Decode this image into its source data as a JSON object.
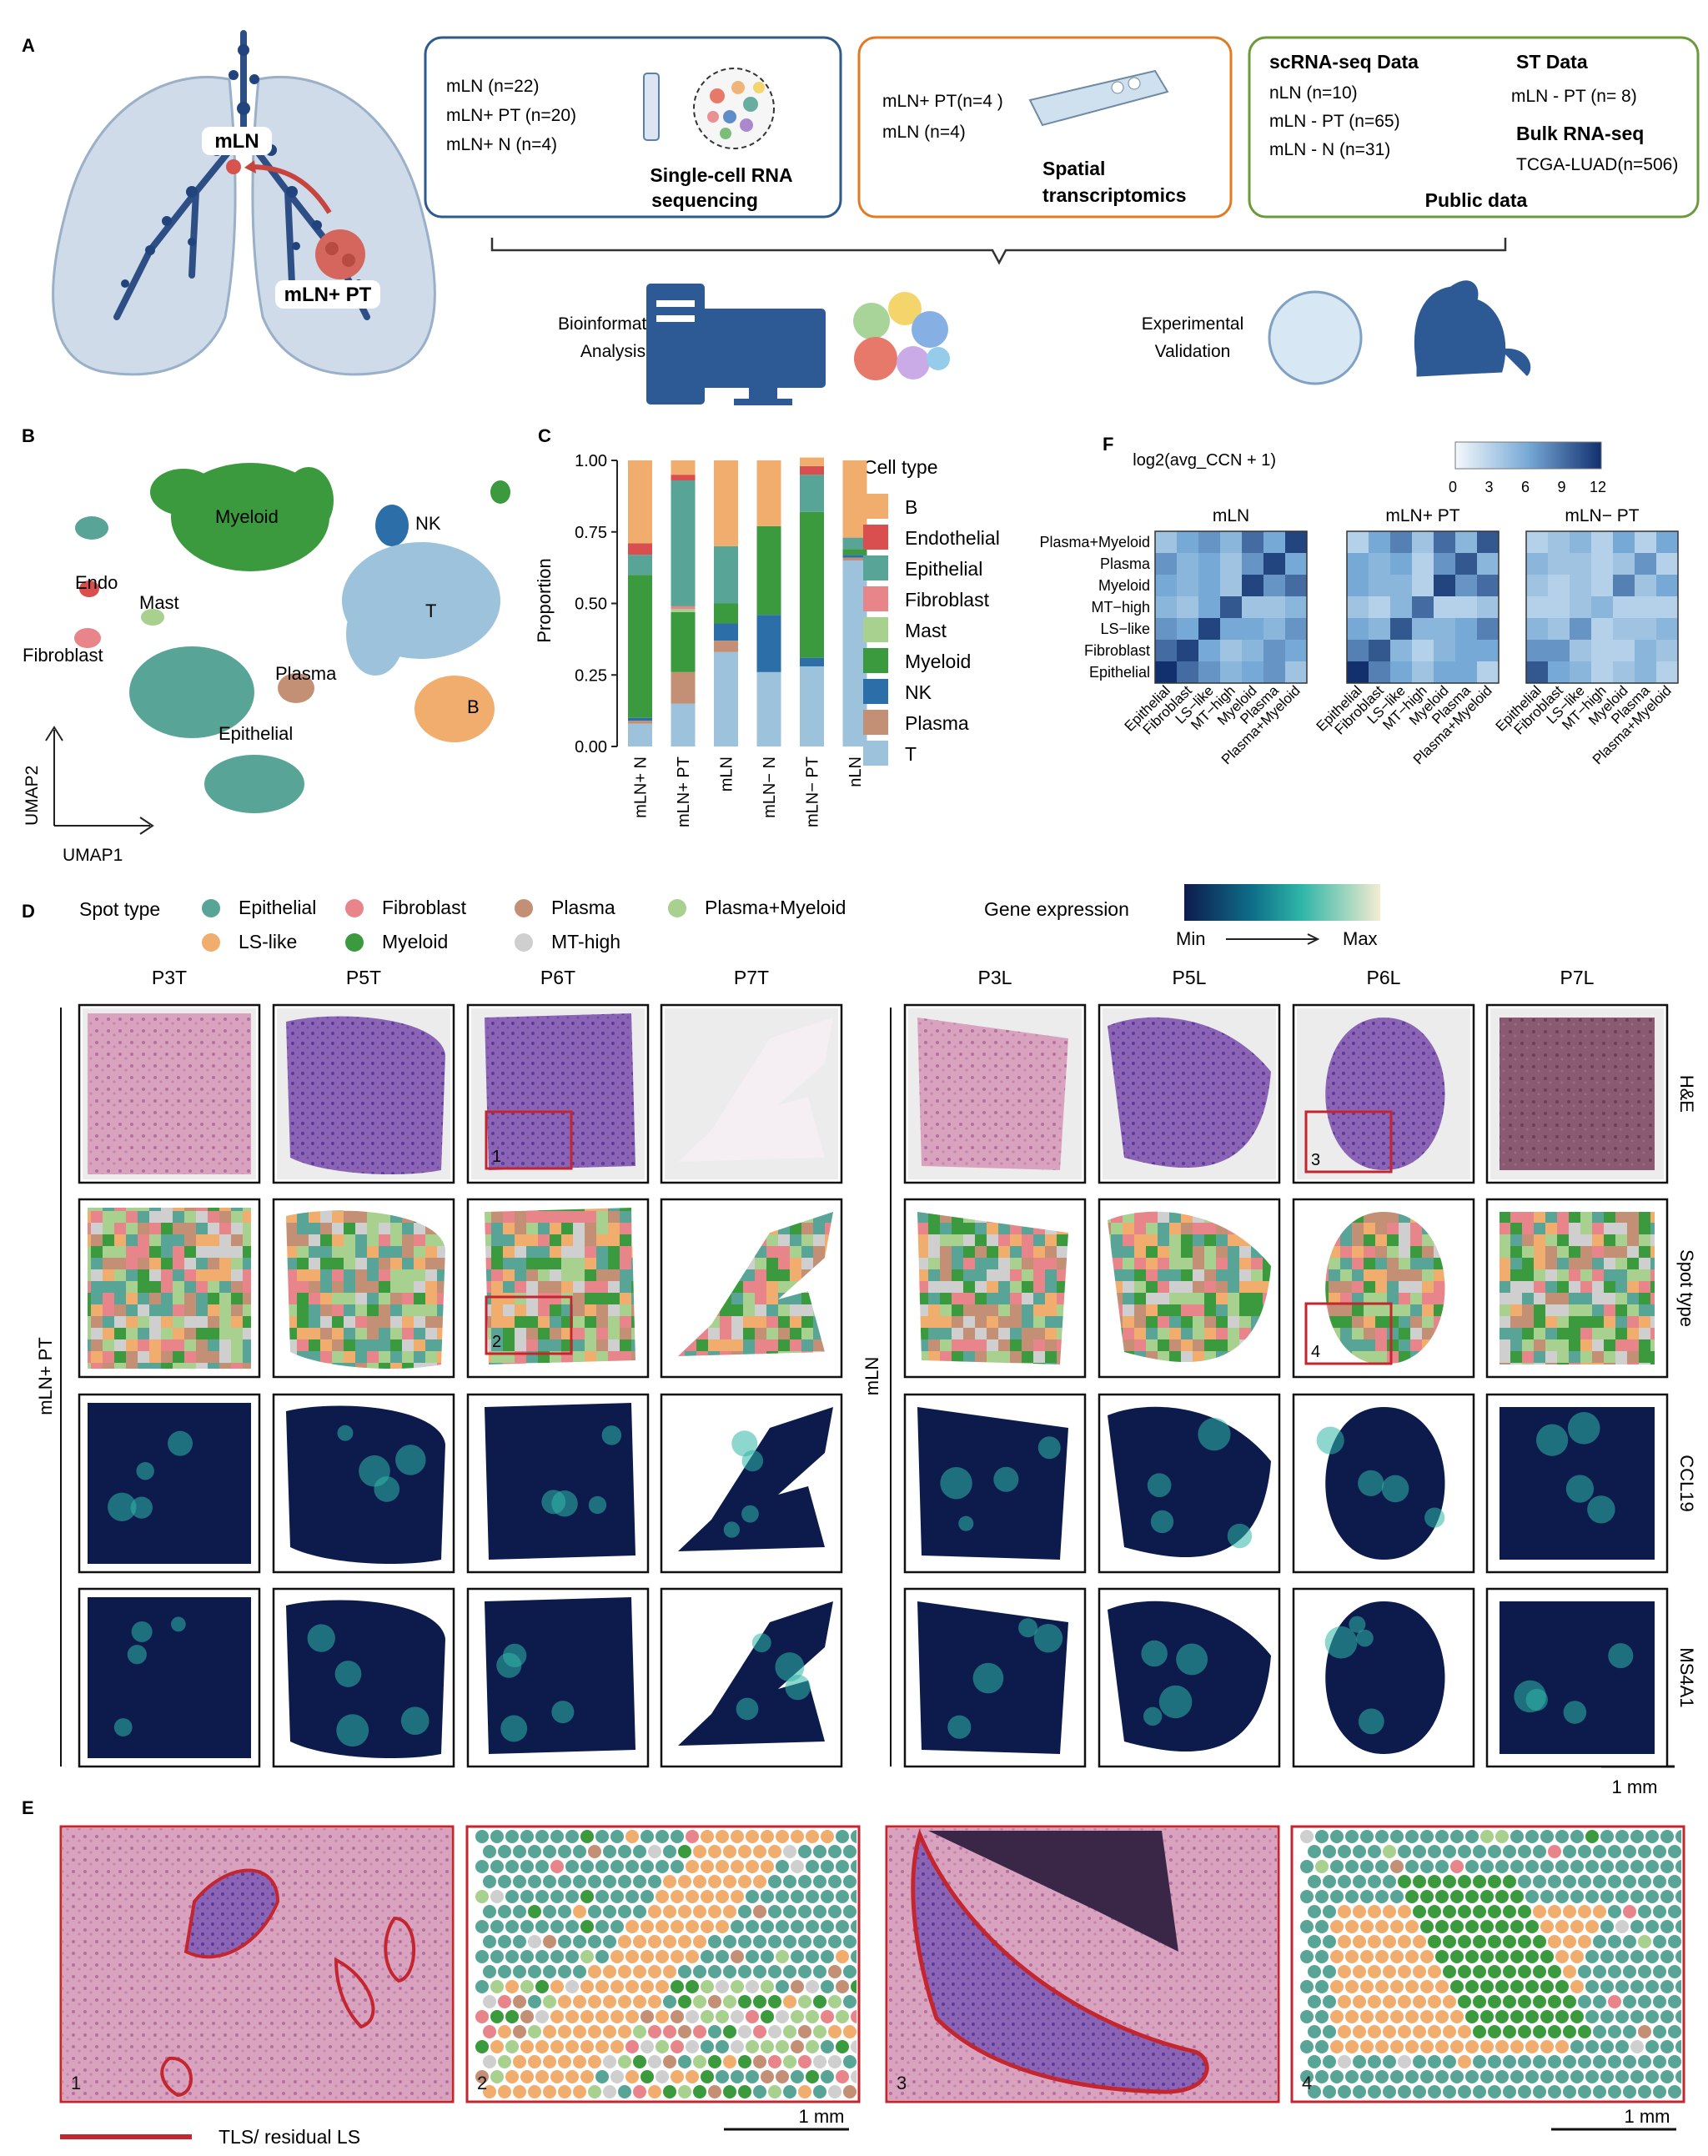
{
  "panel_letters": {
    "a": "A",
    "b": "B",
    "c": "C",
    "d": "D",
    "e": "E",
    "f": "F"
  },
  "panel_a": {
    "lung_labels": {
      "mln": "mLN",
      "mln_pt": "mLN+ PT"
    },
    "box1": {
      "lines": [
        "mLN  (n=22)",
        "mLN+ PT (n=20)",
        "mLN+ N (n=4)"
      ],
      "title": [
        "Single-cell RNA",
        "sequencing"
      ]
    },
    "box2": {
      "lines": [
        "mLN+ PT(n=4 )",
        "mLN  (n=4)"
      ],
      "title": [
        "Spatial",
        "transcriptomics"
      ]
    },
    "box3": {
      "heading1": "scRNA-seq Data",
      "lines1": [
        "nLN  (n=10)",
        "mLN - PT (n=65)",
        "mLN - N (n=31)"
      ],
      "heading2": "ST Data",
      "lines2": [
        "mLN - PT (n= 8)"
      ],
      "heading3": "Bulk RNA-seq",
      "lines3": [
        "TCGA-LUAD(n=506)"
      ],
      "footer": "Public  data"
    },
    "bottom": {
      "bioinf": [
        "Bioinformatics",
        "Analysis"
      ],
      "exp": [
        "Experimental",
        "Validation"
      ]
    },
    "colors": {
      "box1": "#2e5a8c",
      "box2": "#e07b25",
      "box3": "#6b9a3a"
    }
  },
  "panel_b": {
    "axis_x": "UMAP1",
    "axis_y": "UMAP2",
    "labels": [
      "Myeloid",
      "NK",
      "T",
      "Endo",
      "Mast",
      "Fibroblast",
      "Plasma",
      "B",
      "Epithelial"
    ]
  },
  "chart_data": {
    "type": "bar",
    "stacked": true,
    "categories": [
      "mLN+ N",
      "mLN+ PT",
      "mLN",
      "mLN− N",
      "mLN− PT",
      "nLN"
    ],
    "ylabel": "Proportion",
    "ylim": [
      0,
      1
    ],
    "yticks": [
      "0.00",
      "0.25",
      "0.50",
      "0.75",
      "1.00"
    ],
    "legend_title": "Cell type",
    "series": [
      {
        "name": "T",
        "color": "#9dc3dc",
        "values": [
          0.08,
          0.15,
          0.33,
          0.26,
          0.28,
          0.65
        ]
      },
      {
        "name": "Plasma",
        "color": "#c39076",
        "values": [
          0.01,
          0.11,
          0.04,
          0.0,
          0.0,
          0.01
        ]
      },
      {
        "name": "NK",
        "color": "#2c6fa8",
        "values": [
          0.01,
          0.0,
          0.06,
          0.2,
          0.03,
          0.01
        ]
      },
      {
        "name": "Myeloid",
        "color": "#3b9a3e",
        "values": [
          0.5,
          0.21,
          0.07,
          0.31,
          0.51,
          0.02
        ]
      },
      {
        "name": "Mast",
        "color": "#a8d08e",
        "values": [
          0.0,
          0.01,
          0.0,
          0.0,
          0.0,
          0.0
        ]
      },
      {
        "name": "Fibroblast",
        "color": "#e8858a",
        "values": [
          0.0,
          0.01,
          0.0,
          0.0,
          0.0,
          0.0
        ]
      },
      {
        "name": "Epithelial",
        "color": "#58a597",
        "values": [
          0.07,
          0.44,
          0.2,
          0.0,
          0.13,
          0.04
        ]
      },
      {
        "name": "Endothelial",
        "color": "#d94e4e",
        "values": [
          0.04,
          0.02,
          0.0,
          0.0,
          0.03,
          0.0
        ]
      },
      {
        "name": "B",
        "color": "#f0ad6e",
        "values": [
          0.29,
          0.05,
          0.3,
          0.23,
          0.03,
          0.27
        ]
      }
    ]
  },
  "panel_f": {
    "colorbar_title": "log2(avg_CCN + 1)",
    "colorbar_ticks": [
      "0",
      "3",
      "6",
      "9",
      "12"
    ],
    "panels": [
      "mLN",
      "mLN+ PT",
      "mLN− PT"
    ],
    "row_labels": [
      "Plasma+Myeloid",
      "Plasma",
      "Myeloid",
      "MT−high",
      "LS−like",
      "Fibroblast",
      "Epithelial"
    ],
    "col_labels": [
      "Epithelial",
      "Fibroblast",
      "LS−like",
      "MT−high",
      "Myeloid",
      "Plasma",
      "Plasma+Myeloid"
    ],
    "matrices": [
      [
        [
          4,
          6,
          7,
          5,
          9,
          6,
          11
        ],
        [
          7,
          5,
          6,
          4,
          7,
          11,
          6
        ],
        [
          6,
          5,
          6,
          4,
          11,
          7,
          9
        ],
        [
          5,
          4,
          6,
          10,
          4,
          4,
          5
        ],
        [
          7,
          6,
          11,
          6,
          6,
          5,
          7
        ],
        [
          9,
          11,
          6,
          4,
          5,
          7,
          6
        ],
        [
          12,
          9,
          7,
          5,
          6,
          7,
          4
        ]
      ],
      [
        [
          3,
          6,
          8,
          4,
          9,
          5,
          10
        ],
        [
          6,
          5,
          6,
          3,
          7,
          10,
          5
        ],
        [
          6,
          5,
          5,
          3,
          11,
          7,
          9
        ],
        [
          4,
          3,
          5,
          9,
          3,
          3,
          4
        ],
        [
          6,
          5,
          10,
          5,
          5,
          6,
          8
        ],
        [
          8,
          10,
          5,
          3,
          5,
          6,
          6
        ],
        [
          12,
          8,
          6,
          4,
          6,
          6,
          3
        ]
      ],
      [
        [
          3,
          4,
          5,
          3,
          6,
          3,
          6
        ],
        [
          5,
          4,
          4,
          3,
          4,
          7,
          3
        ],
        [
          4,
          3,
          4,
          3,
          8,
          4,
          6
        ],
        [
          3,
          3,
          4,
          5,
          3,
          3,
          3
        ],
        [
          5,
          4,
          7,
          3,
          4,
          4,
          5
        ],
        [
          7,
          7,
          4,
          3,
          3,
          5,
          4
        ],
        [
          10,
          6,
          5,
          3,
          4,
          5,
          3
        ]
      ]
    ]
  },
  "panel_d": {
    "legend_title": "Spot type",
    "legend_items": [
      {
        "label": "Epithelial",
        "color": "#58a597"
      },
      {
        "label": "Fibroblast",
        "color": "#e8858a"
      },
      {
        "label": "Plasma",
        "color": "#c39076"
      },
      {
        "label": "Plasma+Myeloid",
        "color": "#a8d08e"
      },
      {
        "label": "LS-like",
        "color": "#f0ad6e"
      },
      {
        "label": "Myeloid",
        "color": "#3b9a3e"
      },
      {
        "label": "MT-high",
        "color": "#cfcfcf"
      }
    ],
    "gene_expression_title": "Gene expression",
    "gene_min": "Min",
    "gene_max": "Max",
    "left_group": "mLN+ PT",
    "right_group": "mLN",
    "left_samples": [
      "P3T",
      "P5T",
      "P6T",
      "P7T"
    ],
    "right_samples": [
      "P3L",
      "P5L",
      "P6L",
      "P7L"
    ],
    "row_labels": [
      "H&E",
      "Spot type",
      "CCL19",
      "MS4A1"
    ],
    "box_labels": [
      "1",
      "2",
      "3",
      "4"
    ],
    "scale": "1 mm"
  },
  "panel_e": {
    "labels": [
      "1",
      "2",
      "3",
      "4"
    ],
    "legend": "TLS/ residual LS",
    "scale": "1 mm"
  }
}
